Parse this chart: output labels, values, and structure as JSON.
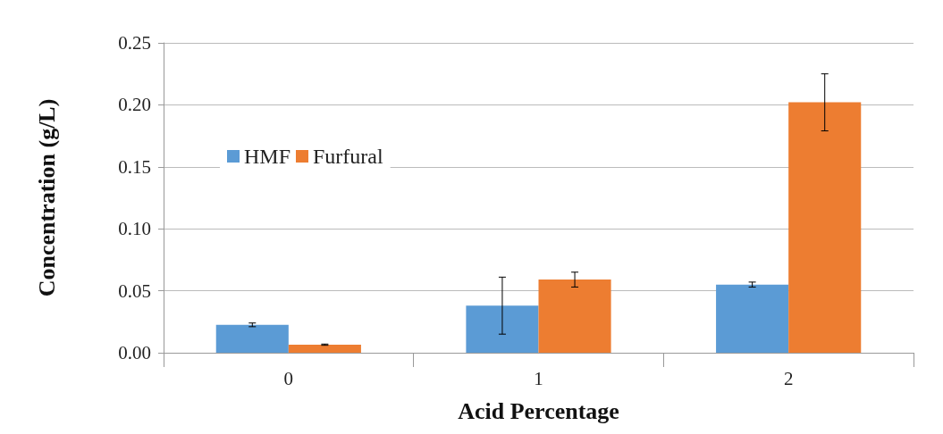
{
  "chart_data": {
    "type": "bar",
    "xlabel": "Acid Percentage",
    "ylabel": "Concentration (g/L)",
    "categories": [
      "0",
      "1",
      "2"
    ],
    "series": [
      {
        "name": "HMF",
        "color": "#5b9bd5",
        "values": [
          0.0225,
          0.038,
          0.055
        ],
        "errors": [
          0.0015,
          0.023,
          0.002
        ]
      },
      {
        "name": "Furfural",
        "color": "#ed7d31",
        "values": [
          0.0065,
          0.059,
          0.202
        ],
        "errors": [
          0.0005,
          0.006,
          0.023
        ]
      }
    ],
    "ylim": [
      0,
      0.25
    ],
    "yticks": [
      {
        "value": 0,
        "label": "0.00"
      },
      {
        "value": 0.05,
        "label": "0.05"
      },
      {
        "value": 0.1,
        "label": "0.10"
      },
      {
        "value": 0.15,
        "label": "0.15"
      },
      {
        "value": 0.2,
        "label": "0.20"
      },
      {
        "value": 0.25,
        "label": "0.25"
      }
    ],
    "grid": "y",
    "legend": "top left"
  }
}
